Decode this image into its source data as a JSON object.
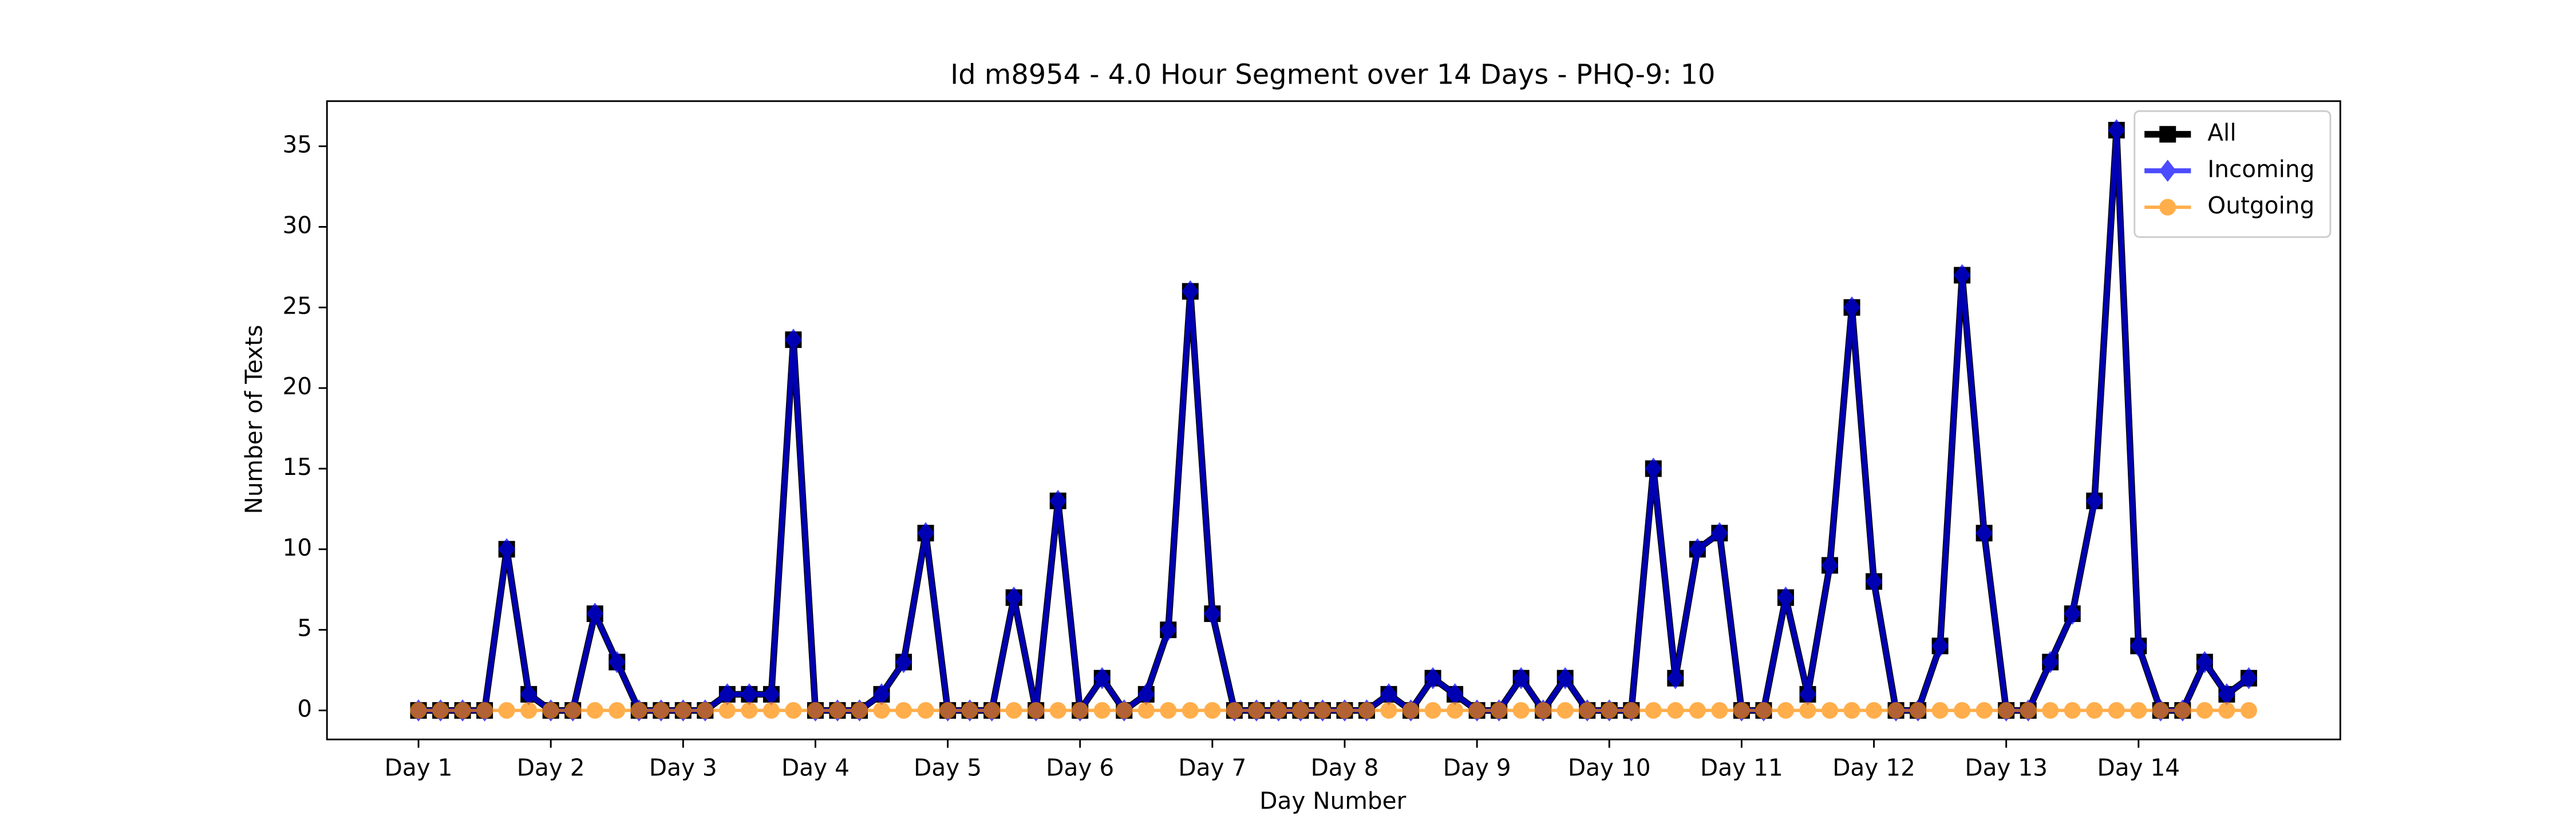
{
  "chart_data": {
    "type": "line",
    "title": "Id m8954 - 4.0 Hour Segment over 14 Days - PHQ-9: 10",
    "xlabel": "Day Number",
    "ylabel": "Number of Texts",
    "x": [
      0,
      1,
      2,
      3,
      4,
      5,
      6,
      7,
      8,
      9,
      10,
      11,
      12,
      13,
      14,
      15,
      16,
      17,
      18,
      19,
      20,
      21,
      22,
      23,
      24,
      25,
      26,
      27,
      28,
      29,
      30,
      31,
      32,
      33,
      34,
      35,
      36,
      37,
      38,
      39,
      40,
      41,
      42,
      43,
      44,
      45,
      46,
      47,
      48,
      49,
      50,
      51,
      52,
      53,
      54,
      55,
      56,
      57,
      58,
      59,
      60,
      61,
      62,
      63,
      64,
      65,
      66,
      67,
      68,
      69,
      70,
      71,
      72,
      73,
      74,
      75,
      76,
      77,
      78,
      79,
      80,
      81,
      82,
      83
    ],
    "series": [
      {
        "name": "All",
        "color": "#000000",
        "marker": "square",
        "linewidth": 4,
        "alpha": 1,
        "values": [
          0,
          0,
          0,
          0,
          10,
          1,
          0,
          0,
          6,
          3,
          0,
          0,
          0,
          0,
          1,
          1,
          1,
          23,
          0,
          0,
          0,
          1,
          3,
          11,
          0,
          0,
          0,
          7,
          0,
          13,
          0,
          2,
          0,
          1,
          5,
          26,
          6,
          0,
          0,
          0,
          0,
          0,
          0,
          0,
          1,
          0,
          2,
          1,
          0,
          0,
          2,
          0,
          2,
          0,
          0,
          0,
          15,
          2,
          10,
          11,
          0,
          0,
          7,
          1,
          9,
          25,
          8,
          0,
          0,
          4,
          27,
          11,
          0,
          0,
          3,
          6,
          13,
          36,
          4,
          0,
          0,
          3,
          1,
          2
        ]
      },
      {
        "name": "Incoming",
        "color": "#0000ff",
        "marker": "diamond",
        "linewidth": 3,
        "alpha": 0.7,
        "values": [
          0,
          0,
          0,
          0,
          10,
          1,
          0,
          0,
          6,
          3,
          0,
          0,
          0,
          0,
          1,
          1,
          1,
          23,
          0,
          0,
          0,
          1,
          3,
          11,
          0,
          0,
          0,
          7,
          0,
          13,
          0,
          2,
          0,
          1,
          5,
          26,
          6,
          0,
          0,
          0,
          0,
          0,
          0,
          0,
          1,
          0,
          2,
          1,
          0,
          0,
          2,
          0,
          2,
          0,
          0,
          0,
          15,
          2,
          10,
          11,
          0,
          0,
          7,
          1,
          9,
          25,
          8,
          0,
          0,
          4,
          27,
          11,
          0,
          0,
          3,
          6,
          13,
          36,
          4,
          0,
          0,
          3,
          1,
          2
        ]
      },
      {
        "name": "Outgoing",
        "color": "#ff8c00",
        "marker": "circle",
        "linewidth": 2,
        "alpha": 0.7,
        "values": [
          0,
          0,
          0,
          0,
          0,
          0,
          0,
          0,
          0,
          0,
          0,
          0,
          0,
          0,
          0,
          0,
          0,
          0,
          0,
          0,
          0,
          0,
          0,
          0,
          0,
          0,
          0,
          0,
          0,
          0,
          0,
          0,
          0,
          0,
          0,
          0,
          0,
          0,
          0,
          0,
          0,
          0,
          0,
          0,
          0,
          0,
          0,
          0,
          0,
          0,
          0,
          0,
          0,
          0,
          0,
          0,
          0,
          0,
          0,
          0,
          0,
          0,
          0,
          0,
          0,
          0,
          0,
          0,
          0,
          0,
          0,
          0,
          0,
          0,
          0,
          0,
          0,
          0,
          0,
          0,
          0,
          0,
          0,
          0
        ]
      }
    ],
    "xlim": [
      -4.15,
      87.15
    ],
    "xticks": [
      {
        "value": 0,
        "label": "Day 1"
      },
      {
        "value": 6,
        "label": "Day 2"
      },
      {
        "value": 12,
        "label": "Day 3"
      },
      {
        "value": 18,
        "label": "Day 4"
      },
      {
        "value": 24,
        "label": "Day 5"
      },
      {
        "value": 30,
        "label": "Day 6"
      },
      {
        "value": 36,
        "label": "Day 7"
      },
      {
        "value": 42,
        "label": "Day 8"
      },
      {
        "value": 48,
        "label": "Day 9"
      },
      {
        "value": 54,
        "label": "Day 10"
      },
      {
        "value": 60,
        "label": "Day 11"
      },
      {
        "value": 66,
        "label": "Day 12"
      },
      {
        "value": 72,
        "label": "Day 13"
      },
      {
        "value": 78,
        "label": "Day 14"
      }
    ],
    "ylim": [
      -1.8,
      37.8
    ],
    "yticks": [
      0,
      5,
      10,
      15,
      20,
      25,
      30,
      35
    ],
    "grid": false,
    "legend": "upper right"
  }
}
